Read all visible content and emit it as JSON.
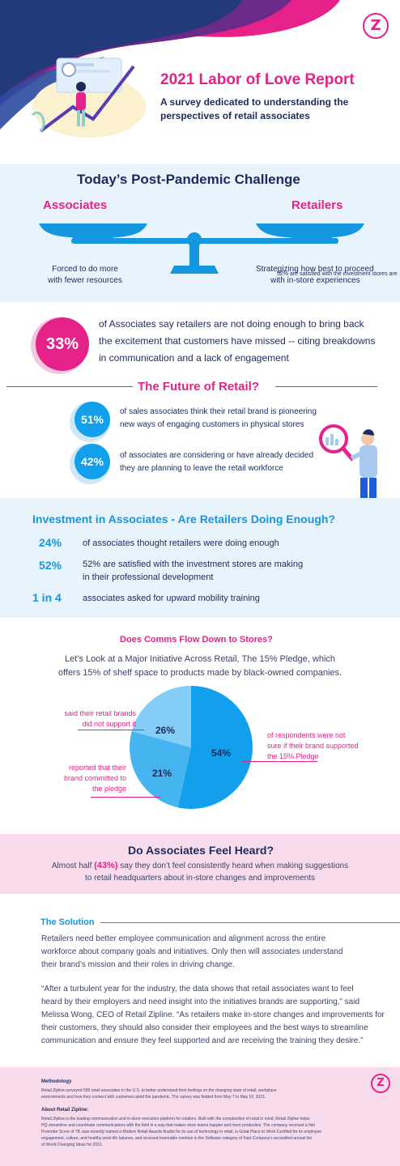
{
  "header": {
    "title": "2021 Labor of Love Report",
    "subtitle": "A survey dedicated to understanding the perspectives of retail associates",
    "logo_letter": "Z"
  },
  "challenge": {
    "title": "Today’s Post-Pandemic Challenge",
    "left_label": "Associates",
    "right_label": "Retailers",
    "left_text_1": "Forced to do more",
    "left_text_2": "with fewer resources",
    "right_text_1": "Strategizing how best to proceed",
    "right_text_2": "with in-store experiences",
    "right_overlap": "52% are satisfied with the investment stores are"
  },
  "excitement": {
    "stat": "33%",
    "line1": "of Associates say retailers are not doing enough to bring back",
    "line2": "the excitement that customers have missed -- citing breakdowns",
    "line3": "in communication and a lack of engagement"
  },
  "future": {
    "title": "The Future of Retail?",
    "items": [
      {
        "stat": "51%",
        "line1": "of sales associates think their retail brand is pioneering",
        "line2": "new ways of engaging customers in physical stores"
      },
      {
        "stat": "42%",
        "line1": "of associates are considering or have already decided",
        "line2": "they are planning to leave the retail workforce"
      }
    ]
  },
  "investment": {
    "title": "Investment in Associates - Are Retailers Doing Enough?",
    "items": [
      {
        "stat": "24%",
        "line1": "of associates thought retailers were doing enough",
        "line2": ""
      },
      {
        "stat": "52%",
        "line1": "52% are satisfied with the investment stores are making",
        "line2": "in their professional development"
      },
      {
        "stat": "1 in 4",
        "line1": "associates asked for upward mobility training",
        "line2": ""
      }
    ]
  },
  "comms": {
    "title": "Does Comms Flow Down to Stores?",
    "line1": "Let’s Look at a Major Initiative Across Retail, The 15% Pledge, which",
    "line2": "offers 15% of shelf space to products made by black-owned companies.",
    "label_26_1": "said their retail brands",
    "label_26_2": "did not support it",
    "label_21_1": "reported that their",
    "label_21_2": "brand committed to",
    "label_21_3": "the pledge",
    "label_54_1": "of respondents were not",
    "label_54_2": "sure if their brand supported",
    "label_54_3": "the 15% Pledge"
  },
  "chart_data": {
    "type": "pie",
    "categories": [
      "not sure",
      "did not support",
      "committed"
    ],
    "values": [
      54,
      26,
      21
    ],
    "labels": [
      "54%",
      "26%",
      "21%"
    ],
    "colors": [
      "#12a0ec",
      "#46b4ef",
      "#84cdf6"
    ]
  },
  "heard": {
    "title": "Do Associates Feel Heard?",
    "pre": "Almost half ",
    "highlight": "(43%)",
    "post": " say they don’t feel consistently heard when making suggestions",
    "line2": "to retail headquarters about in-store changes and improvements"
  },
  "solution": {
    "title": "The Solution",
    "p1_1": "Retailers need better employee communication and alignment across the entire",
    "p1_2": "workforce about company goals and initiatives. Only then will associates understand",
    "p1_3": "their brand’s mission and their roles in driving change.",
    "p2_1": "“After a turbulent year for the industry, the data shows that retail associates want to feel",
    "p2_2": "heard by their employers and need insight into the initiatives brands are supporting,” said",
    "p2_3": "Melissa Wong, CEO of Retail Zipline. “As retailers make in-store changes and improvements for",
    "p2_4": "their customers, they should also consider their employees and the best ways to streamline",
    "p2_5": "communication and ensure they feel supported and are receiving the training they desire.”"
  },
  "footer": {
    "method_title": "Methodology",
    "method_1": "Retail Zipline surveyed 500 retail associates in the U.S. to better understand their feelings on the changing state of retail, workplace",
    "method_2": "environments and how they connect with customers amid the pandemic. The survey was fielded from May 7 to May 10, 2021.",
    "about_title": "About Retail Zipline:",
    "about_1": "Retail Zipline is the leading communication and in-store execution platform for retailers. Built with the complexities of retail in mind, Retail Zipline helps",
    "about_2": "HQ streamline and coordinate communications with the field in a way that makes store teams happier and more productive. The company received a Net",
    "about_3": "Promoter Score of 78, was recently named a Modern Retail Awards finalist for its use of technology in retail, is Great Place to Work-Certified for its employee",
    "about_4": "engagement, culture, and healthy work-life balance, and received honorable mention in the Software category of Fast Company's accredited annual list",
    "about_5": "of World Changing Ideas for 2021."
  }
}
